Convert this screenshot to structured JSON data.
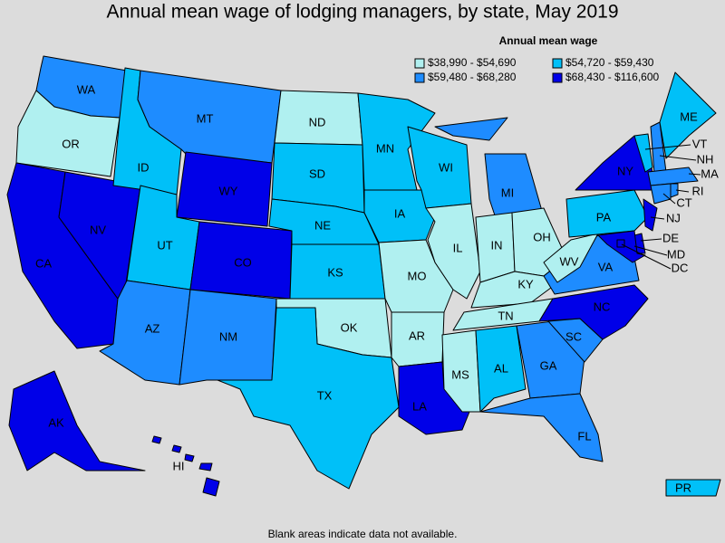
{
  "title": "Annual mean wage of lodging managers, by state, May 2019",
  "legend": {
    "title": "Annual mean wage",
    "items": [
      {
        "label": "$38,990 - $54,690",
        "color": "#b0f0f0"
      },
      {
        "label": "$54,720 - $59,430",
        "color": "#00c0f8"
      },
      {
        "label": "$59,480 - $68,280",
        "color": "#1e8cff"
      },
      {
        "label": "$68,430 - $116,600",
        "color": "#0000e8"
      }
    ]
  },
  "states": [
    {
      "abbr": "WA",
      "class": 2
    },
    {
      "abbr": "OR",
      "class": 0
    },
    {
      "abbr": "CA",
      "class": 3
    },
    {
      "abbr": "NV",
      "class": 3
    },
    {
      "abbr": "ID",
      "class": 1
    },
    {
      "abbr": "MT",
      "class": 2
    },
    {
      "abbr": "WY",
      "class": 3
    },
    {
      "abbr": "UT",
      "class": 1
    },
    {
      "abbr": "CO",
      "class": 3
    },
    {
      "abbr": "AZ",
      "class": 2
    },
    {
      "abbr": "NM",
      "class": 2
    },
    {
      "abbr": "ND",
      "class": 0
    },
    {
      "abbr": "SD",
      "class": 1
    },
    {
      "abbr": "NE",
      "class": 1
    },
    {
      "abbr": "KS",
      "class": 1
    },
    {
      "abbr": "OK",
      "class": 0
    },
    {
      "abbr": "TX",
      "class": 1
    },
    {
      "abbr": "MN",
      "class": 1
    },
    {
      "abbr": "IA",
      "class": 1
    },
    {
      "abbr": "MO",
      "class": 0
    },
    {
      "abbr": "AR",
      "class": 0
    },
    {
      "abbr": "LA",
      "class": 3
    },
    {
      "abbr": "WI",
      "class": 1
    },
    {
      "abbr": "IL",
      "class": 0
    },
    {
      "abbr": "MI",
      "class": 2
    },
    {
      "abbr": "IN",
      "class": 0
    },
    {
      "abbr": "OH",
      "class": 0
    },
    {
      "abbr": "KY",
      "class": 0
    },
    {
      "abbr": "TN",
      "class": 0
    },
    {
      "abbr": "MS",
      "class": 0
    },
    {
      "abbr": "AL",
      "class": 1
    },
    {
      "abbr": "GA",
      "class": 2
    },
    {
      "abbr": "FL",
      "class": 2
    },
    {
      "abbr": "SC",
      "class": 2
    },
    {
      "abbr": "NC",
      "class": 3
    },
    {
      "abbr": "VA",
      "class": 2
    },
    {
      "abbr": "WV",
      "class": 0
    },
    {
      "abbr": "PA",
      "class": 1
    },
    {
      "abbr": "NY",
      "class": 3
    },
    {
      "abbr": "VT",
      "class": 1
    },
    {
      "abbr": "NH",
      "class": 2
    },
    {
      "abbr": "ME",
      "class": 1
    },
    {
      "abbr": "MA",
      "class": 2
    },
    {
      "abbr": "CT",
      "class": 2
    },
    {
      "abbr": "RI",
      "class": 2
    },
    {
      "abbr": "NJ",
      "class": 3
    },
    {
      "abbr": "DE",
      "class": 3
    },
    {
      "abbr": "MD",
      "class": 3
    },
    {
      "abbr": "DC",
      "class": 3
    },
    {
      "abbr": "AK",
      "class": 3
    },
    {
      "abbr": "HI",
      "class": 3
    },
    {
      "abbr": "PR",
      "class": 1
    }
  ],
  "note": "Blank areas indicate data not available."
}
